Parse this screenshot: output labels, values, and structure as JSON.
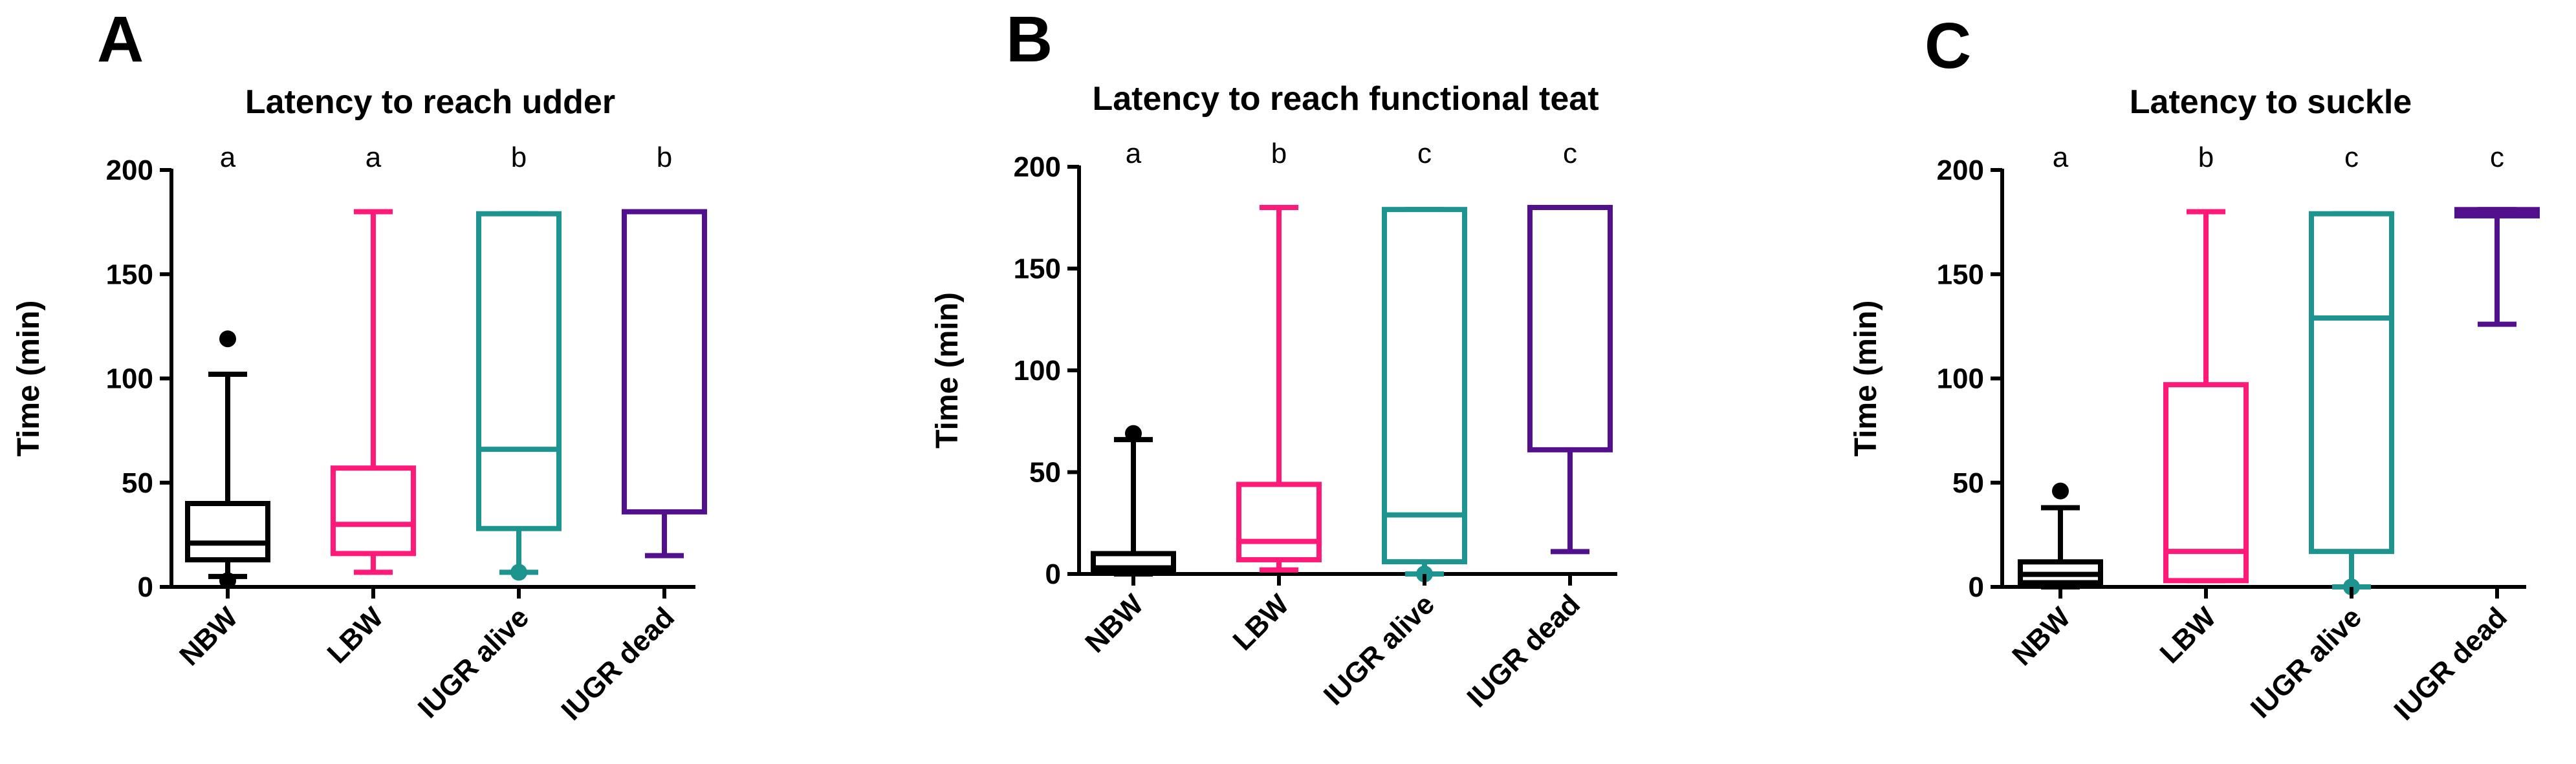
{
  "chart_data": [
    {
      "panel": "A",
      "type": "box",
      "title": "Latency to reach udder",
      "ylabel": "Time (min)",
      "ylim": [
        0,
        200
      ],
      "yticks": [
        "0",
        "50",
        "100",
        "150",
        "200"
      ],
      "categories": [
        "NBW",
        "LBW",
        "IUGR alive",
        "IUGR dead"
      ],
      "significance": [
        "a",
        "a",
        "b",
        "b"
      ],
      "colors": [
        "#000000",
        "#ff1a7a",
        "#1e9490",
        "#52108c"
      ],
      "boxes": [
        {
          "min": 5,
          "q1": 13,
          "median": 21,
          "q3": 40,
          "max": 102,
          "outliers": [
            119,
            3
          ]
        },
        {
          "min": 7,
          "q1": 16,
          "median": 30,
          "q3": 57,
          "max": 180,
          "outliers": []
        },
        {
          "min": 7,
          "q1": 28,
          "median": 66,
          "q3": 179,
          "max": 179,
          "outliers": [
            7
          ]
        },
        {
          "min": 15,
          "q1": 36,
          "median": 180,
          "q3": 180,
          "max": 180,
          "outliers": []
        }
      ]
    },
    {
      "panel": "B",
      "type": "box",
      "title": "Latency to reach functional teat",
      "ylabel": "Time (min)",
      "ylim": [
        0,
        200
      ],
      "yticks": [
        "0",
        "50",
        "100",
        "150",
        "200"
      ],
      "categories": [
        "NBW",
        "LBW",
        "IUGR alive",
        "IUGR dead"
      ],
      "significance": [
        "a",
        "b",
        "c",
        "c"
      ],
      "colors": [
        "#000000",
        "#ff1a7a",
        "#1e9490",
        "#52108c"
      ],
      "boxes": [
        {
          "min": 0,
          "q1": 2,
          "median": 3,
          "q3": 10,
          "max": 66,
          "outliers": [
            69
          ]
        },
        {
          "min": 2,
          "q1": 7,
          "median": 16,
          "q3": 44,
          "max": 180,
          "outliers": []
        },
        {
          "min": 0,
          "q1": 6,
          "median": 29,
          "q3": 179,
          "max": 179,
          "outliers": [
            0
          ]
        },
        {
          "min": 11,
          "q1": 61,
          "median": 180,
          "q3": 180,
          "max": 180,
          "outliers": []
        }
      ]
    },
    {
      "panel": "C",
      "type": "box",
      "title": "Latency to suckle",
      "ylabel": "Time (min)",
      "ylim": [
        0,
        200
      ],
      "yticks": [
        "0",
        "50",
        "100",
        "150",
        "200"
      ],
      "categories": [
        "NBW",
        "LBW",
        "IUGR alive",
        "IUGR dead"
      ],
      "significance": [
        "a",
        "b",
        "c",
        "c"
      ],
      "colors": [
        "#000000",
        "#ff1a7a",
        "#1e9490",
        "#52108c"
      ],
      "boxes": [
        {
          "min": 0,
          "q1": 2,
          "median": 6,
          "q3": 12,
          "max": 38,
          "outliers": [
            46
          ]
        },
        {
          "min": 3,
          "q1": 3,
          "median": 17,
          "q3": 97,
          "max": 180,
          "outliers": []
        },
        {
          "min": 0,
          "q1": 17,
          "median": 129,
          "q3": 179,
          "max": 179,
          "outliers": [
            0
          ]
        },
        {
          "min": 126,
          "q1": 178,
          "median": 180,
          "q3": 181,
          "max": 181,
          "outliers": []
        }
      ]
    }
  ]
}
